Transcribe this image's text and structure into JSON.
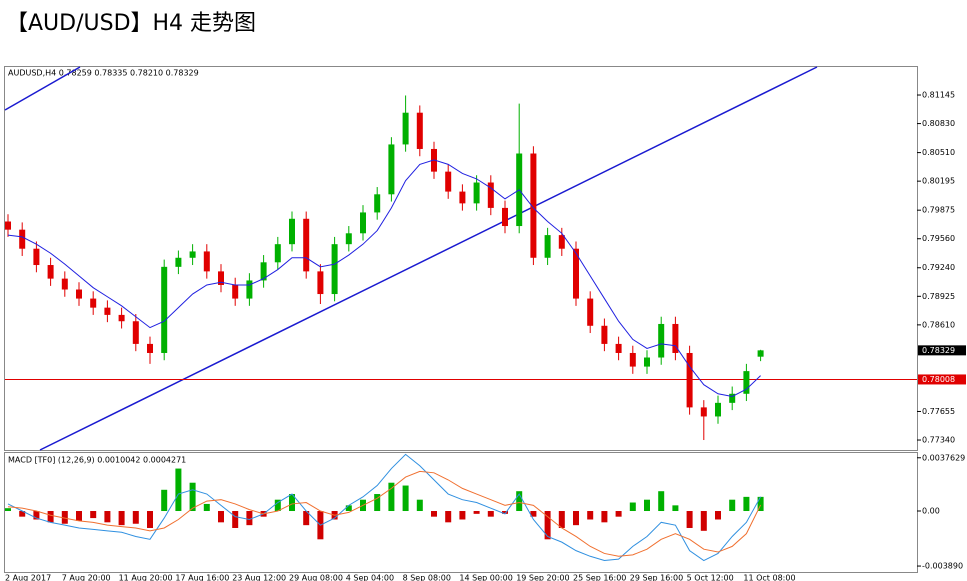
{
  "chart_data": [
    {
      "type": "candlestick",
      "title": "【AUD/USD】H4 走势图",
      "info": "AUDUSD,H4  0.78259 0.78335 0.78210 0.78329",
      "categories": [
        "2 Aug 2017",
        null,
        null,
        null,
        "7 Aug 20:00",
        null,
        null,
        null,
        "11 Aug 20:00",
        null,
        null,
        null,
        "17 Aug 16:00",
        null,
        null,
        null,
        "23 Aug 12:00",
        null,
        null,
        null,
        "29 Aug 08:00",
        null,
        null,
        null,
        "4 Sep 04:00",
        null,
        null,
        null,
        "8 Sep 08:00",
        null,
        null,
        null,
        "14 Sep 00:00",
        null,
        null,
        null,
        "19 Sep 20:00",
        null,
        null,
        null,
        "25 Sep 16:00",
        null,
        null,
        null,
        "29 Sep 16:00",
        null,
        null,
        null,
        "5 Oct 12:00",
        null,
        null,
        null,
        "11 Oct 08:00",
        null
      ],
      "open": [
        0.7975,
        0.7966,
        0.7945,
        0.7927,
        0.7912,
        0.79,
        0.789,
        0.788,
        0.7872,
        0.7865,
        0.784,
        0.783,
        0.7925,
        0.7935,
        0.7942,
        0.792,
        0.7905,
        0.789,
        0.791,
        0.793,
        0.795,
        0.7978,
        0.792,
        0.7895,
        0.795,
        0.7962,
        0.7985,
        0.8005,
        0.806,
        0.8095,
        0.8055,
        0.803,
        0.8008,
        0.7995,
        0.8018,
        0.799,
        0.797,
        0.805,
        0.7935,
        0.796,
        0.7945,
        0.789,
        0.786,
        0.784,
        0.783,
        0.7815,
        0.7825,
        0.7862,
        0.783,
        0.777,
        0.776,
        0.7775,
        0.7785,
        0.78259
      ],
      "high": [
        0.7983,
        0.7974,
        0.7953,
        0.7935,
        0.792,
        0.7908,
        0.7898,
        0.7888,
        0.788,
        0.7873,
        0.7848,
        0.7933,
        0.7943,
        0.795,
        0.795,
        0.7928,
        0.7913,
        0.7918,
        0.7938,
        0.7958,
        0.7986,
        0.7986,
        0.7928,
        0.7958,
        0.797,
        0.7993,
        0.8013,
        0.8068,
        0.8114,
        0.8103,
        0.8063,
        0.8038,
        0.8016,
        0.8026,
        0.8026,
        0.7998,
        0.8105,
        0.8058,
        0.7968,
        0.7968,
        0.7953,
        0.7898,
        0.7868,
        0.7848,
        0.7838,
        0.7833,
        0.787,
        0.787,
        0.7838,
        0.7778,
        0.7783,
        0.7793,
        0.7818,
        0.78335
      ],
      "low": [
        0.7958,
        0.7937,
        0.7919,
        0.7904,
        0.7892,
        0.7882,
        0.7872,
        0.7864,
        0.7857,
        0.7832,
        0.7818,
        0.7822,
        0.7917,
        0.7927,
        0.7912,
        0.7897,
        0.7882,
        0.7882,
        0.7902,
        0.7922,
        0.7942,
        0.7912,
        0.7884,
        0.7887,
        0.7942,
        0.7954,
        0.7977,
        0.7997,
        0.8052,
        0.8047,
        0.8022,
        0.8,
        0.7987,
        0.7987,
        0.7982,
        0.7962,
        0.7962,
        0.7927,
        0.7927,
        0.7937,
        0.7882,
        0.7852,
        0.7832,
        0.7822,
        0.7807,
        0.7807,
        0.7817,
        0.7822,
        0.7762,
        0.7734,
        0.7752,
        0.7767,
        0.7777,
        0.7821
      ],
      "close": [
        0.7966,
        0.7945,
        0.7927,
        0.7912,
        0.79,
        0.789,
        0.788,
        0.7872,
        0.7865,
        0.784,
        0.783,
        0.7925,
        0.7935,
        0.7942,
        0.792,
        0.7905,
        0.789,
        0.791,
        0.793,
        0.795,
        0.7978,
        0.792,
        0.7895,
        0.795,
        0.7962,
        0.7985,
        0.8005,
        0.806,
        0.8095,
        0.8055,
        0.803,
        0.8008,
        0.7995,
        0.8018,
        0.799,
        0.797,
        0.805,
        0.7935,
        0.796,
        0.7945,
        0.789,
        0.786,
        0.784,
        0.783,
        0.7815,
        0.7825,
        0.7862,
        0.783,
        0.777,
        0.776,
        0.7775,
        0.7785,
        0.781,
        0.78329
      ],
      "ma": [
        0.796,
        0.7958,
        0.795,
        0.794,
        0.7928,
        0.7915,
        0.7902,
        0.7892,
        0.7882,
        0.787,
        0.7858,
        0.7865,
        0.788,
        0.7895,
        0.7905,
        0.7908,
        0.7905,
        0.7905,
        0.7912,
        0.7922,
        0.7935,
        0.7935,
        0.7925,
        0.7928,
        0.7938,
        0.795,
        0.7965,
        0.799,
        0.802,
        0.8038,
        0.8043,
        0.8038,
        0.8028,
        0.8022,
        0.8012,
        0.8,
        0.801,
        0.799,
        0.7975,
        0.7962,
        0.794,
        0.7915,
        0.789,
        0.7865,
        0.7845,
        0.7835,
        0.784,
        0.7838,
        0.7815,
        0.7795,
        0.7785,
        0.7782,
        0.779,
        0.7805
      ],
      "up_color": "#00b000",
      "down_color": "#e00000",
      "ma_color": "#2020e0",
      "hline": 0.78008,
      "hline_color": "#e00000",
      "ylim": [
        0.7723,
        0.81454
      ],
      "yticks": [
        0.81145,
        {
          "value": 0.8083,
          "label": "0.80830"
        },
        {
          "value": 0.8051,
          "label": "0.80510"
        },
        0.80195,
        0.79875,
        {
          "value": 0.7956,
          "label": "0.79560"
        },
        {
          "value": 0.7924,
          "label": "0.79240"
        },
        0.78925,
        {
          "value": 0.7861,
          "label": "0.78610"
        },
        0.77655,
        {
          "value": 0.7734,
          "label": "0.77340"
        }
      ]
    },
    {
      "type": "macd",
      "title": "MACD [TF0] (12,26,9) 0.0010042 0.0004271",
      "histogram": [
        0.0002,
        -0.0004,
        -0.0006,
        -0.0008,
        -0.0009,
        -0.0007,
        -0.0005,
        -0.0008,
        -0.001,
        -0.0009,
        -0.0012,
        0.0015,
        0.003,
        0.002,
        0.0005,
        -0.0008,
        -0.0012,
        -0.001,
        -0.0004,
        0.0008,
        0.0012,
        -0.001,
        -0.002,
        -0.0006,
        0.0004,
        0.0008,
        0.0012,
        0.002,
        0.0018,
        0.0008,
        -0.0004,
        -0.0008,
        -0.0006,
        -0.0002,
        -0.0004,
        -0.0002,
        0.0014,
        -0.0004,
        -0.002,
        -0.0012,
        -0.001,
        -0.0006,
        -0.0008,
        -0.0004,
        0.0006,
        0.0008,
        0.0014,
        0.0004,
        -0.0012,
        -0.0014,
        -0.0006,
        0.0008,
        0.001,
        0.001
      ],
      "up_color": "#00b000",
      "down_color": "#d00000",
      "series": [
        {
          "color": "#3090e0",
          "values": [
            0.0005,
            0,
            -0.0005,
            -0.0008,
            -0.001,
            -0.0012,
            -0.0013,
            -0.0014,
            -0.0015,
            -0.0018,
            -0.002,
            -0.0005,
            0.0012,
            0.0015,
            0.0012,
            0.0004,
            -0.0004,
            -0.0006,
            -0.0002,
            0.0006,
            0.0012,
            0,
            -0.001,
            -0.0005,
            0.0004,
            0.001,
            0.0018,
            0.003,
            0.004,
            0.0032,
            0.0022,
            0.0012,
            0.0008,
            0.0006,
            0.0002,
            -0.0002,
            0.0012,
            -0.0006,
            -0.0018,
            -0.0022,
            -0.0028,
            -0.0032,
            -0.0035,
            -0.0034,
            -0.0025,
            -0.0018,
            -0.0008,
            -0.001,
            -0.0028,
            -0.0035,
            -0.003,
            -0.0018,
            -0.0008,
            0.0010042
          ]
        },
        {
          "color": "#f07030",
          "values": [
            0.0003,
            0.0002,
            0,
            -0.0003,
            -0.0005,
            -0.0007,
            -0.0008,
            -0.001,
            -0.0011,
            -0.0012,
            -0.0014,
            -0.0012,
            -0.0006,
            0.0002,
            0.0007,
            0.0008,
            0.0005,
            0.0001,
            -0.0002,
            0,
            0.0005,
            0.0006,
            0,
            -0.0003,
            -0.0001,
            0.0004,
            0.0009,
            0.0016,
            0.0024,
            0.0028,
            0.0027,
            0.0022,
            0.0016,
            0.0012,
            0.0008,
            0.0004,
            0.0006,
            0.0004,
            -0.0004,
            -0.0012,
            -0.0018,
            -0.0025,
            -0.003,
            -0.0032,
            -0.0031,
            -0.0027,
            -0.002,
            -0.0016,
            -0.002,
            -0.0027,
            -0.0029,
            -0.0025,
            -0.0016,
            0.0004271
          ]
        }
      ],
      "ylim": [
        -0.00424,
        0.0041
      ],
      "yticks": [
        {
          "value": 0.0037629,
          "label": "0.0037629"
        },
        {
          "value": 0,
          "label": "0.00"
        },
        {
          "value": -0.00389,
          "label": "-0.003890"
        }
      ]
    }
  ]
}
